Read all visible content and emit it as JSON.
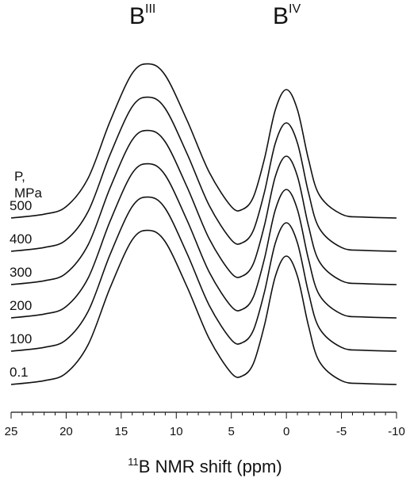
{
  "chart_data": {
    "type": "line",
    "title": "",
    "annotations": {
      "peak_1": {
        "base": "B",
        "sup": "III",
        "x": 12.5
      },
      "peak_2": {
        "base": "B",
        "sup": "IV",
        "x": 0.0
      }
    },
    "legend_title": {
      "line1": "P,",
      "line2": "MPa"
    },
    "xlabel": {
      "sup": "11",
      "text": "B NMR shift (ppm)"
    },
    "ylabel": "",
    "xlim": [
      25,
      -10
    ],
    "x_reversed": true,
    "xticks": [
      25,
      20,
      15,
      10,
      5,
      0,
      -5,
      -10
    ],
    "xtick_labels": [
      "25",
      "20",
      "15",
      "10",
      "5",
      "0",
      "-5",
      "-10"
    ],
    "grid": false,
    "y_units": "relative intensity, vertically offset per pressure",
    "x": [
      25,
      22,
      20,
      18,
      16,
      14,
      12.5,
      11,
      9,
      7,
      5,
      4,
      3,
      2,
      1,
      0,
      -1,
      -2,
      -3,
      -5,
      -7,
      -10
    ],
    "series": [
      {
        "name": "500",
        "offset": 5,
        "values": [
          0.0,
          0.04,
          0.12,
          0.42,
          1.02,
          1.52,
          1.62,
          1.5,
          1.02,
          0.48,
          0.12,
          0.09,
          0.22,
          0.62,
          1.14,
          1.35,
          1.14,
          0.62,
          0.24,
          0.04,
          0.01,
          0.0
        ]
      },
      {
        "name": "400",
        "offset": 4,
        "values": [
          0.0,
          0.04,
          0.12,
          0.42,
          1.02,
          1.52,
          1.62,
          1.5,
          1.02,
          0.48,
          0.12,
          0.09,
          0.22,
          0.62,
          1.14,
          1.35,
          1.14,
          0.62,
          0.24,
          0.04,
          0.01,
          0.0
        ]
      },
      {
        "name": "300",
        "offset": 3,
        "values": [
          0.0,
          0.04,
          0.12,
          0.42,
          1.02,
          1.52,
          1.62,
          1.5,
          1.02,
          0.48,
          0.12,
          0.09,
          0.22,
          0.62,
          1.14,
          1.35,
          1.14,
          0.62,
          0.24,
          0.04,
          0.01,
          0.0
        ]
      },
      {
        "name": "200",
        "offset": 2,
        "values": [
          0.0,
          0.04,
          0.12,
          0.42,
          1.02,
          1.52,
          1.62,
          1.5,
          1.02,
          0.48,
          0.12,
          0.09,
          0.22,
          0.62,
          1.14,
          1.35,
          1.14,
          0.62,
          0.24,
          0.04,
          0.01,
          0.0
        ]
      },
      {
        "name": "100",
        "offset": 1,
        "values": [
          0.0,
          0.04,
          0.12,
          0.42,
          1.02,
          1.52,
          1.62,
          1.5,
          1.02,
          0.48,
          0.12,
          0.09,
          0.22,
          0.62,
          1.14,
          1.35,
          1.14,
          0.62,
          0.24,
          0.04,
          0.01,
          0.0
        ]
      },
      {
        "name": "0.1",
        "offset": 0,
        "values": [
          0.0,
          0.04,
          0.12,
          0.42,
          1.02,
          1.52,
          1.62,
          1.5,
          1.02,
          0.48,
          0.12,
          0.09,
          0.22,
          0.62,
          1.14,
          1.35,
          1.14,
          0.62,
          0.24,
          0.04,
          0.01,
          0.0
        ]
      }
    ]
  }
}
